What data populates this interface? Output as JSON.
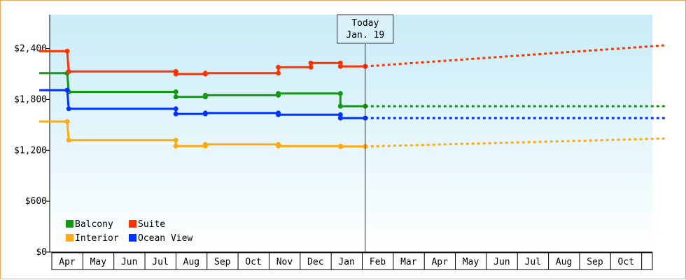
{
  "chart_data": {
    "type": "line",
    "title": "",
    "xlabel": "",
    "ylabel": "",
    "ylim": [
      0,
      2800
    ],
    "y_ticks": [
      {
        "value": 0,
        "label": "$0"
      },
      {
        "value": 600,
        "label": "$600"
      },
      {
        "value": 1200,
        "label": "$1,200"
      },
      {
        "value": 1800,
        "label": "$1,800"
      },
      {
        "value": 2400,
        "label": "$2,400"
      }
    ],
    "x_months": [
      "Apr",
      "May",
      "Jun",
      "Jul",
      "Aug",
      "Sep",
      "Oct",
      "Nov",
      "Dec",
      "Jan",
      "Feb",
      "Mar",
      "Apr",
      "May",
      "Jun",
      "Jul",
      "Aug",
      "Sep",
      "Oct"
    ],
    "x_unit": "month index from April (0 = Apr)",
    "today": {
      "line1": "Today",
      "line2": "Jan. 19",
      "x": 9.6
    },
    "grid": false,
    "legend_position": "bottom-left",
    "background_gradient": [
      "#c8ecf8",
      "#ffffff"
    ],
    "series": [
      {
        "name": "Balcony",
        "color": "#119911",
        "points": [
          [
            -0.9,
            2110
          ],
          [
            0,
            2110
          ],
          [
            0.05,
            1890
          ],
          [
            3.5,
            1890
          ],
          [
            3.5,
            1830
          ],
          [
            4.45,
            1830
          ],
          [
            4.45,
            1850
          ],
          [
            6.8,
            1850
          ],
          [
            6.8,
            1870
          ],
          [
            8.8,
            1870
          ],
          [
            8.8,
            1720
          ],
          [
            9.6,
            1720
          ]
        ],
        "forecast": [
          [
            9.6,
            1720
          ],
          [
            19.3,
            1720
          ]
        ]
      },
      {
        "name": "Suite",
        "color": "#ff3300",
        "points": [
          [
            -0.9,
            2370
          ],
          [
            0,
            2370
          ],
          [
            0.05,
            2130
          ],
          [
            3.5,
            2130
          ],
          [
            3.5,
            2100
          ],
          [
            4.45,
            2100
          ],
          [
            4.45,
            2110
          ],
          [
            6.8,
            2110
          ],
          [
            6.8,
            2180
          ],
          [
            7.85,
            2180
          ],
          [
            7.85,
            2230
          ],
          [
            8.8,
            2230
          ],
          [
            8.8,
            2190
          ],
          [
            9.6,
            2190
          ]
        ],
        "forecast": [
          [
            9.6,
            2190
          ],
          [
            19.3,
            2440
          ]
        ]
      },
      {
        "name": "Interior",
        "color": "#ffaa11",
        "points": [
          [
            -0.9,
            1540
          ],
          [
            0,
            1540
          ],
          [
            0.05,
            1320
          ],
          [
            3.5,
            1320
          ],
          [
            3.5,
            1250
          ],
          [
            4.45,
            1250
          ],
          [
            4.45,
            1270
          ],
          [
            6.8,
            1270
          ],
          [
            6.8,
            1250
          ],
          [
            8.8,
            1250
          ],
          [
            8.8,
            1245
          ],
          [
            9.6,
            1245
          ]
        ],
        "forecast": [
          [
            9.6,
            1245
          ],
          [
            19.3,
            1340
          ]
        ]
      },
      {
        "name": "Ocean View",
        "color": "#0033ff",
        "points": [
          [
            -0.9,
            1910
          ],
          [
            0,
            1910
          ],
          [
            0.05,
            1690
          ],
          [
            3.5,
            1690
          ],
          [
            3.5,
            1630
          ],
          [
            4.45,
            1630
          ],
          [
            4.45,
            1640
          ],
          [
            6.8,
            1640
          ],
          [
            6.8,
            1620
          ],
          [
            8.8,
            1620
          ],
          [
            8.8,
            1580
          ],
          [
            9.6,
            1580
          ]
        ],
        "forecast": [
          [
            9.6,
            1580
          ],
          [
            19.3,
            1580
          ]
        ]
      }
    ],
    "legend": [
      {
        "name": "Balcony",
        "color": "#119911"
      },
      {
        "name": "Suite",
        "color": "#ff3300"
      },
      {
        "name": "Interior",
        "color": "#ffaa11"
      },
      {
        "name": "Ocean View",
        "color": "#0033ff"
      }
    ]
  }
}
